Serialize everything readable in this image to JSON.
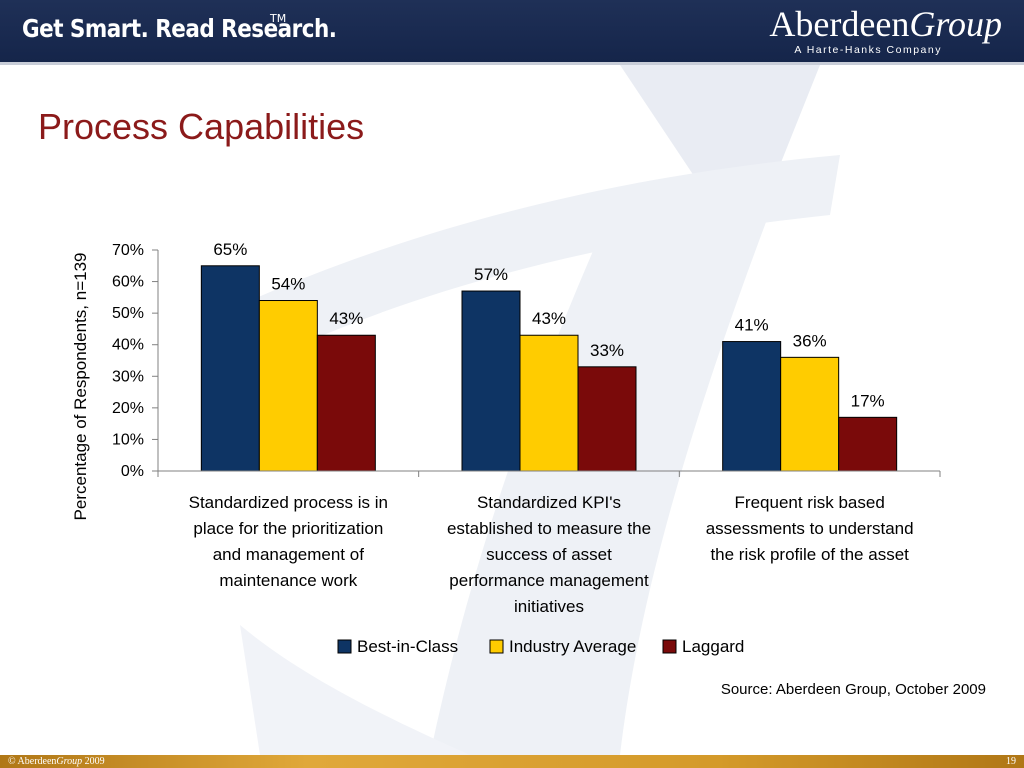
{
  "header": {
    "tagline": "Get Smart. Read Research.",
    "tagline_mark": "TM",
    "logo_name": "Aberdeen",
    "logo_group": "Group",
    "logo_sub": "A Harte-Hanks Company"
  },
  "slide": {
    "title": "Process Capabilities",
    "source": "Source: Aberdeen Group, October 2009"
  },
  "footer": {
    "copyright_prefix": "© Aberdeen",
    "copyright_group": "Group",
    "copyright_year": " 2009",
    "page_number": "19"
  },
  "colors": {
    "header_bg": "#1f3057",
    "title": "#8b1a1a",
    "best_in_class": "#0e3464",
    "industry_average": "#ffcc00",
    "laggard": "#7a0a0a",
    "footer_bg": "#d49a2a"
  },
  "chart_data": {
    "type": "bar",
    "title": "",
    "ylabel": "Percentage of Respondents, n=139",
    "ylim": [
      0,
      70
    ],
    "yticks": [
      0,
      10,
      20,
      30,
      40,
      50,
      60,
      70
    ],
    "ytick_labels": [
      "0%",
      "10%",
      "20%",
      "30%",
      "40%",
      "50%",
      "60%",
      "70%"
    ],
    "categories": [
      [
        "Standardized process is in",
        "place for the prioritization",
        "and management of",
        "maintenance work"
      ],
      [
        "Standardized KPI's",
        "established to measure the",
        "success of asset",
        "performance management",
        "initiatives"
      ],
      [
        "Frequent risk based",
        "assessments to understand",
        "the risk profile of the asset"
      ]
    ],
    "series": [
      {
        "name": "Best-in-Class",
        "values": [
          65,
          57,
          41
        ],
        "labels": [
          "65%",
          "57%",
          "41%"
        ]
      },
      {
        "name": "Industry Average",
        "values": [
          54,
          43,
          36
        ],
        "labels": [
          "54%",
          "43%",
          "36%"
        ]
      },
      {
        "name": "Laggard",
        "values": [
          43,
          33,
          17
        ],
        "labels": [
          "43%",
          "33%",
          "17%"
        ]
      }
    ],
    "legend_position": "bottom",
    "grid": false
  }
}
